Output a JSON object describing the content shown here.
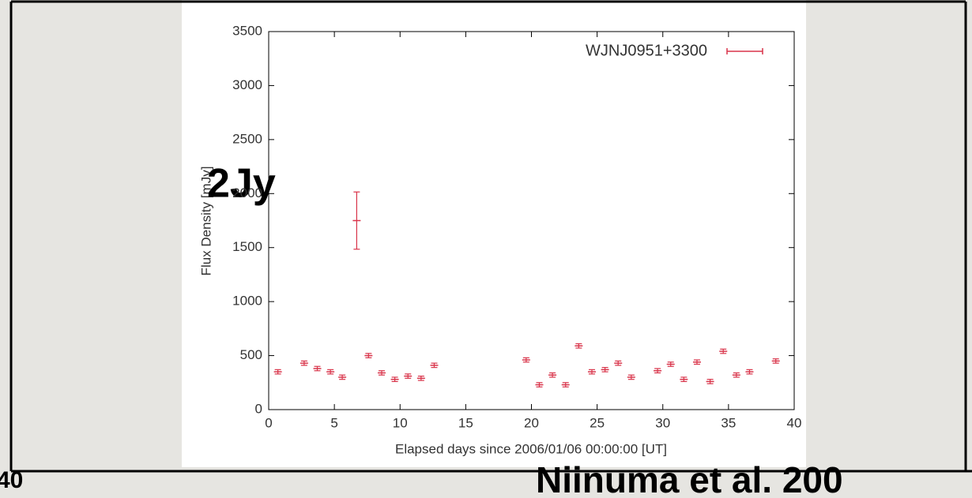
{
  "chart_data": {
    "type": "scatter",
    "xlabel": "Elapsed days since 2006/01/06 00:00:00 [UT]",
    "ylabel": "Flux Density [mJy]",
    "xlim": [
      0,
      40
    ],
    "xticks": [
      0,
      5,
      10,
      15,
      20,
      25,
      30,
      35,
      40
    ],
    "ylim": [
      0,
      3500
    ],
    "yticks": [
      0,
      500,
      1000,
      1500,
      2000,
      2500,
      3000,
      3500
    ],
    "legend": "upper right",
    "series": [
      {
        "name": "WJNJ0951+3300",
        "color": "#d9344a",
        "x": [
          0.7,
          2.7,
          3.7,
          4.7,
          5.6,
          6.7,
          7.6,
          8.6,
          9.6,
          10.6,
          11.6,
          12.6,
          19.6,
          20.6,
          21.6,
          22.6,
          23.6,
          24.6,
          25.6,
          26.6,
          27.6,
          29.6,
          30.6,
          31.6,
          32.6,
          33.6,
          34.6,
          35.6,
          36.6,
          38.6
        ],
        "values": [
          350,
          430,
          380,
          350,
          300,
          1750,
          500,
          340,
          280,
          310,
          290,
          410,
          460,
          230,
          320,
          230,
          590,
          350,
          370,
          430,
          300,
          360,
          420,
          280,
          440,
          260,
          540,
          320,
          350,
          450
        ],
        "errors": [
          20,
          20,
          20,
          20,
          20,
          265,
          20,
          20,
          20,
          20,
          20,
          20,
          20,
          20,
          20,
          20,
          20,
          20,
          20,
          20,
          20,
          20,
          20,
          20,
          20,
          20,
          20,
          20,
          20,
          20
        ]
      }
    ],
    "annotations": [
      "2Jy",
      "Niinuma et al. 200",
      "40"
    ]
  }
}
